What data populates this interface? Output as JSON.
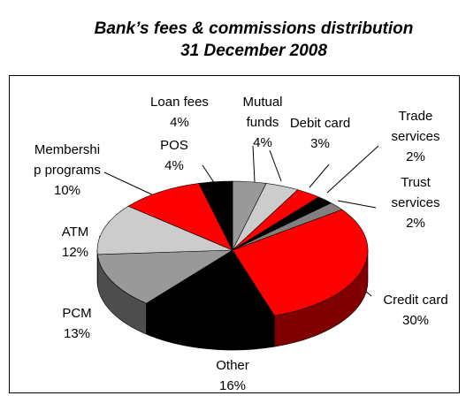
{
  "chart_data": {
    "type": "pie",
    "title": "Bank’s fees & commissions distribution",
    "subtitle": "31 December 2008",
    "categories": [
      "Loan fees",
      "Mutual funds",
      "Debit card",
      "Trade services",
      "Trust services",
      "Credit card",
      "Other",
      "PCM",
      "ATM",
      "Membership programs",
      "POS"
    ],
    "values": [
      4,
      4,
      3,
      2,
      2,
      30,
      16,
      13,
      12,
      10,
      4
    ],
    "value_labels": [
      "4%",
      "4%",
      "3%",
      "2%",
      "2%",
      "30%",
      "16%",
      "13%",
      "12%",
      "10%",
      "4%"
    ],
    "colors": [
      "#999999",
      "#cccccc",
      "#ff0000",
      "#000000",
      "#808080",
      "#ff0000",
      "#000000",
      "#999999",
      "#cccccc",
      "#ff0000",
      "#000000"
    ]
  }
}
